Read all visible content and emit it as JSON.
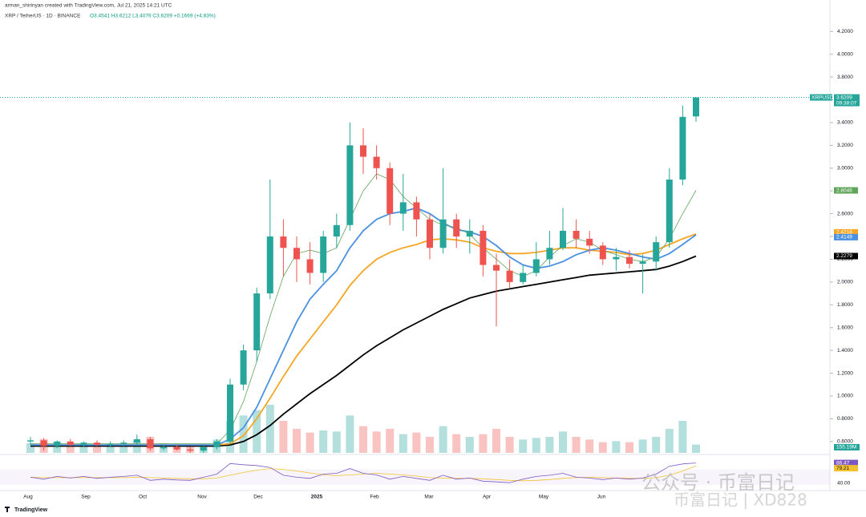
{
  "chart_data": {
    "type": "candlestick",
    "author_line": "arman_shirinyan created with TradingView.com, Jul 21, 2025 14:21 UTC",
    "symbol_line": "XRP / TetherUS · 1D · BINANCE",
    "ohlc_line": "O3.4541 H3.6212 L3.4076 C3.6209 +0.1669 (+4.83%)",
    "symbol_tag": "XRPUSDT",
    "countdown": "09:38:07",
    "volume_label": "155.19M",
    "rsi_axis_label": "40.00",
    "footer": "TradingView",
    "watermark": "公众号 · 币富日记",
    "watermark_sub": "币富日记 | XD828",
    "x_axis_labels": [
      "Aug",
      "Sep",
      "Oct",
      "Nov",
      "Dec",
      "2025",
      "Feb",
      "Mar",
      "Apr",
      "May",
      "Jun"
    ],
    "categories": [
      null,
      null,
      null,
      null,
      null,
      null,
      null,
      null,
      null,
      null,
      null,
      null,
      null,
      null,
      null,
      null,
      null,
      null,
      null,
      null,
      null,
      null,
      null,
      null,
      null,
      null,
      null,
      null,
      null,
      null,
      null,
      null,
      null,
      null,
      null,
      null,
      null,
      null,
      null,
      null,
      null,
      null,
      null,
      null,
      null,
      null,
      null,
      null,
      null,
      null,
      null
    ],
    "open": [
      0.6,
      0.61,
      0.56,
      0.6,
      0.57,
      0.59,
      0.57,
      0.58,
      0.59,
      0.62,
      0.54,
      0.55,
      0.53,
      0.52,
      0.55,
      0.6,
      1.1,
      1.4,
      1.9,
      2.4,
      2.3,
      2.2,
      2.08,
      2.4,
      2.5,
      3.2,
      3.1,
      3.0,
      2.6,
      2.7,
      2.55,
      2.3,
      2.55,
      2.4,
      2.45,
      2.15,
      2.1,
      2.0,
      2.08,
      2.2,
      2.3,
      2.45,
      2.38,
      2.32,
      2.2,
      2.22,
      2.16,
      2.18,
      2.35,
      2.9,
      3.4541
    ],
    "high": [
      0.64,
      0.63,
      0.61,
      0.62,
      0.6,
      0.61,
      0.6,
      0.61,
      0.66,
      0.64,
      0.57,
      0.57,
      0.55,
      0.56,
      0.62,
      1.15,
      1.45,
      1.95,
      2.9,
      2.55,
      2.4,
      2.35,
      2.45,
      2.6,
      3.4,
      3.35,
      3.2,
      3.05,
      2.95,
      2.75,
      2.6,
      3.0,
      2.6,
      2.55,
      2.5,
      2.25,
      2.2,
      2.15,
      2.35,
      2.45,
      2.65,
      2.55,
      2.45,
      2.35,
      2.3,
      2.28,
      2.24,
      2.4,
      3.0,
      3.55,
      3.6212
    ],
    "low": [
      0.57,
      0.52,
      0.54,
      0.56,
      0.55,
      0.56,
      0.55,
      0.56,
      0.57,
      0.52,
      0.52,
      0.52,
      0.5,
      0.5,
      0.53,
      0.58,
      1.05,
      1.3,
      1.85,
      2.05,
      2.0,
      1.98,
      2.0,
      2.3,
      2.45,
      2.95,
      2.9,
      2.5,
      2.45,
      2.4,
      2.2,
      2.25,
      2.3,
      2.25,
      2.05,
      1.61,
      1.95,
      1.98,
      2.05,
      2.15,
      2.28,
      2.3,
      2.25,
      2.15,
      2.1,
      2.12,
      1.9,
      2.1,
      2.3,
      2.85,
      3.4076
    ],
    "close": [
      0.61,
      0.56,
      0.6,
      0.57,
      0.59,
      0.57,
      0.58,
      0.59,
      0.62,
      0.54,
      0.55,
      0.53,
      0.52,
      0.55,
      0.6,
      1.1,
      1.4,
      1.9,
      2.4,
      2.3,
      2.2,
      2.08,
      2.4,
      2.5,
      3.2,
      3.1,
      3.0,
      2.6,
      2.7,
      2.55,
      2.3,
      2.55,
      2.4,
      2.45,
      2.15,
      2.1,
      2.0,
      2.08,
      2.2,
      2.3,
      2.45,
      2.38,
      2.32,
      2.2,
      2.22,
      2.16,
      2.18,
      2.35,
      2.9,
      3.45,
      3.6209
    ],
    "up_color": "#26a69a",
    "down_color": "#ef5350",
    "series": [
      {
        "color": "#000000",
        "values": [
          0.56,
          0.56,
          0.56,
          0.56,
          0.56,
          0.56,
          0.56,
          0.56,
          0.56,
          0.56,
          0.56,
          0.56,
          0.56,
          0.56,
          0.56,
          0.57,
          0.6,
          0.66,
          0.74,
          0.84,
          0.93,
          1.02,
          1.1,
          1.18,
          1.27,
          1.36,
          1.44,
          1.51,
          1.58,
          1.64,
          1.7,
          1.76,
          1.81,
          1.86,
          1.89,
          1.92,
          1.94,
          1.96,
          1.98,
          2.0,
          2.02,
          2.04,
          2.06,
          2.07,
          2.08,
          2.09,
          2.1,
          2.11,
          2.14,
          2.18,
          2.2279
        ]
      },
      {
        "color": "#f5a623",
        "values": [
          0.57,
          0.57,
          0.57,
          0.57,
          0.57,
          0.57,
          0.57,
          0.57,
          0.57,
          0.57,
          0.57,
          0.57,
          0.57,
          0.57,
          0.57,
          0.58,
          0.65,
          0.8,
          0.98,
          1.17,
          1.35,
          1.5,
          1.65,
          1.8,
          1.97,
          2.1,
          2.2,
          2.26,
          2.3,
          2.33,
          2.37,
          2.38,
          2.37,
          2.35,
          2.3,
          2.27,
          2.25,
          2.25,
          2.26,
          2.28,
          2.3,
          2.3,
          2.28,
          2.27,
          2.26,
          2.24,
          2.25,
          2.28,
          2.33,
          2.38,
          2.4218
        ]
      },
      {
        "color": "#4a90e2",
        "values": [
          0.57,
          0.57,
          0.57,
          0.57,
          0.57,
          0.57,
          0.57,
          0.57,
          0.57,
          0.57,
          0.57,
          0.57,
          0.57,
          0.57,
          0.57,
          0.62,
          0.72,
          0.9,
          1.15,
          1.4,
          1.65,
          1.85,
          1.98,
          2.1,
          2.3,
          2.45,
          2.55,
          2.6,
          2.62,
          2.65,
          2.6,
          2.52,
          2.46,
          2.44,
          2.4,
          2.32,
          2.22,
          2.15,
          2.12,
          2.14,
          2.18,
          2.24,
          2.28,
          2.3,
          2.28,
          2.25,
          2.22,
          2.2,
          2.25,
          2.33,
          2.4149
        ]
      },
      {
        "color": "#5fa55a",
        "values": [
          0.58,
          0.58,
          0.58,
          0.58,
          0.58,
          0.58,
          0.58,
          0.58,
          0.58,
          0.58,
          0.58,
          0.58,
          0.58,
          0.58,
          0.58,
          0.7,
          0.95,
          1.3,
          1.7,
          2.05,
          2.25,
          2.28,
          2.25,
          2.3,
          2.55,
          2.8,
          2.95,
          2.9,
          2.75,
          2.65,
          2.55,
          2.5,
          2.48,
          2.42,
          2.3,
          2.2,
          2.1,
          2.05,
          2.1,
          2.22,
          2.32,
          2.38,
          2.35,
          2.28,
          2.24,
          2.2,
          2.18,
          2.22,
          2.38,
          2.6,
          2.8046
        ]
      }
    ],
    "ylim": [
      0.5,
      4.42
    ],
    "yticks": [
      {
        "value": 0.6,
        "label": "0.6000"
      },
      {
        "value": 0.8,
        "label": "0.8000"
      },
      {
        "value": 1.0,
        "label": "1.0000"
      },
      {
        "value": 1.2,
        "label": "1.2000"
      },
      {
        "value": 1.4,
        "label": "1.4000"
      },
      {
        "value": 1.6,
        "label": "1.6000"
      },
      {
        "value": 1.8,
        "label": "1.8000"
      },
      {
        "value": 2.0,
        "label": "2.0000"
      },
      {
        "value": 2.2,
        "label": "2.2000"
      },
      {
        "value": 2.4,
        "label": "2.4000"
      },
      {
        "value": 2.6,
        "label": "2.6000"
      },
      {
        "value": 2.8,
        "label": "2.8000"
      },
      {
        "value": 3.0,
        "label": "3.0000"
      },
      {
        "value": 3.2,
        "label": "3.2000"
      },
      {
        "value": 3.4,
        "label": "3.4000"
      },
      {
        "value": 3.6,
        "label": "3.6000"
      },
      {
        "value": 3.8,
        "label": "3.8000"
      },
      {
        "value": 4.0,
        "label": "4.0000"
      },
      {
        "value": 4.2,
        "label": "4.2000"
      }
    ],
    "grid": false,
    "volume": [
      180,
      260,
      200,
      180,
      170,
      160,
      150,
      170,
      230,
      300,
      180,
      160,
      150,
      170,
      250,
      600,
      700,
      800,
      900,
      600,
      450,
      380,
      420,
      400,
      700,
      500,
      400,
      450,
      350,
      380,
      300,
      500,
      350,
      300,
      350,
      450,
      300,
      250,
      280,
      300,
      400,
      300,
      250,
      200,
      220,
      200,
      250,
      300,
      450,
      600,
      155.19
    ],
    "volume_ylim": [
      0,
      1500
    ],
    "rsi": [
      50,
      45,
      52,
      48,
      52,
      47,
      50,
      52,
      55,
      42,
      45,
      43,
      42,
      50,
      58,
      85,
      82,
      80,
      75,
      55,
      50,
      47,
      58,
      60,
      72,
      60,
      56,
      45,
      52,
      47,
      42,
      55,
      45,
      48,
      40,
      38,
      36,
      45,
      52,
      55,
      60,
      50,
      48,
      44,
      48,
      45,
      48,
      58,
      78,
      84,
      86.47
    ],
    "rsi_ma": [
      50,
      49,
      49,
      49,
      49,
      49,
      49,
      49,
      50,
      49,
      48,
      47,
      46,
      46,
      48,
      55,
      62,
      68,
      72,
      70,
      66,
      61,
      56,
      54,
      56,
      58,
      60,
      58,
      56,
      53,
      49,
      48,
      47,
      47,
      46,
      44,
      42,
      41,
      42,
      44,
      47,
      49,
      50,
      49,
      48,
      47,
      47,
      49,
      55,
      66,
      79.21
    ],
    "rsi_color": "#7e57c2",
    "rsi_ma_color": "#f2c230",
    "rsi_ylim": [
      20,
      100
    ]
  }
}
